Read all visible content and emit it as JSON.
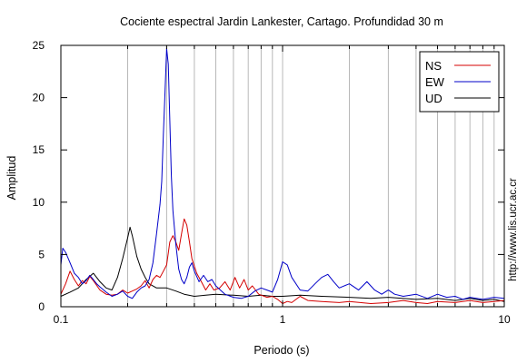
{
  "chart_data": {
    "type": "line",
    "title": "Cociente espectral Jardin Lankester, Cartago. Profundidad 30 m",
    "xlabel": "Periodo (s)",
    "ylabel": "Amplitud",
    "x_scale": "log",
    "xlim": [
      0.1,
      10
    ],
    "ylim": [
      0,
      25
    ],
    "x_ticks": [
      {
        "value": 0.1,
        "label": "0.1"
      },
      {
        "value": 1,
        "label": "1"
      },
      {
        "value": 10,
        "label": "10"
      }
    ],
    "y_ticks": [
      {
        "value": 0,
        "label": "0"
      },
      {
        "value": 5,
        "label": "5"
      },
      {
        "value": 10,
        "label": "10"
      },
      {
        "value": 15,
        "label": "15"
      },
      {
        "value": 20,
        "label": "20"
      },
      {
        "value": 25,
        "label": "25"
      }
    ],
    "grid": "vertical",
    "legend_position": "top-right",
    "side_text": "http://www.lis.ucr.ac.cr",
    "series": [
      {
        "name": "NS",
        "color": "#d40000",
        "points": [
          [
            0.1,
            1.2
          ],
          [
            0.105,
            2.2
          ],
          [
            0.11,
            3.4
          ],
          [
            0.115,
            2.6
          ],
          [
            0.12,
            2.0
          ],
          [
            0.125,
            2.5
          ],
          [
            0.13,
            2.2
          ],
          [
            0.135,
            2.9
          ],
          [
            0.14,
            2.5
          ],
          [
            0.15,
            1.6
          ],
          [
            0.16,
            1.2
          ],
          [
            0.17,
            1.1
          ],
          [
            0.18,
            1.2
          ],
          [
            0.19,
            1.6
          ],
          [
            0.2,
            1.3
          ],
          [
            0.21,
            1.5
          ],
          [
            0.22,
            1.7
          ],
          [
            0.23,
            2.0
          ],
          [
            0.24,
            2.5
          ],
          [
            0.25,
            1.8
          ],
          [
            0.26,
            2.6
          ],
          [
            0.27,
            3.0
          ],
          [
            0.28,
            2.8
          ],
          [
            0.29,
            3.4
          ],
          [
            0.3,
            4.0
          ],
          [
            0.31,
            6.2
          ],
          [
            0.32,
            6.8
          ],
          [
            0.33,
            6.2
          ],
          [
            0.34,
            5.4
          ],
          [
            0.35,
            7.0
          ],
          [
            0.36,
            8.4
          ],
          [
            0.37,
            7.8
          ],
          [
            0.38,
            6.2
          ],
          [
            0.39,
            4.6
          ],
          [
            0.41,
            3.2
          ],
          [
            0.43,
            2.4
          ],
          [
            0.45,
            1.6
          ],
          [
            0.47,
            2.2
          ],
          [
            0.49,
            1.6
          ],
          [
            0.52,
            1.8
          ],
          [
            0.55,
            2.4
          ],
          [
            0.58,
            1.6
          ],
          [
            0.61,
            2.8
          ],
          [
            0.64,
            1.8
          ],
          [
            0.67,
            2.6
          ],
          [
            0.7,
            1.6
          ],
          [
            0.73,
            2.0
          ],
          [
            0.78,
            1.2
          ],
          [
            0.85,
            0.9
          ],
          [
            0.9,
            1.0
          ],
          [
            0.95,
            0.7
          ],
          [
            1.0,
            0.3
          ],
          [
            1.05,
            0.5
          ],
          [
            1.1,
            0.4
          ],
          [
            1.2,
            1.0
          ],
          [
            1.3,
            0.6
          ],
          [
            1.5,
            0.5
          ],
          [
            1.8,
            0.4
          ],
          [
            2.0,
            0.5
          ],
          [
            2.5,
            0.3
          ],
          [
            3.0,
            0.4
          ],
          [
            3.5,
            0.6
          ],
          [
            4.0,
            0.4
          ],
          [
            4.5,
            0.3
          ],
          [
            5.0,
            0.5
          ],
          [
            6.0,
            0.4
          ],
          [
            7.0,
            0.6
          ],
          [
            8.0,
            0.4
          ],
          [
            9.0,
            0.5
          ],
          [
            10.0,
            0.6
          ]
        ]
      },
      {
        "name": "EW",
        "color": "#0000c8",
        "points": [
          [
            0.1,
            4.0
          ],
          [
            0.102,
            5.6
          ],
          [
            0.105,
            5.2
          ],
          [
            0.11,
            4.2
          ],
          [
            0.115,
            3.2
          ],
          [
            0.12,
            2.8
          ],
          [
            0.125,
            2.2
          ],
          [
            0.13,
            2.5
          ],
          [
            0.135,
            3.0
          ],
          [
            0.14,
            2.6
          ],
          [
            0.145,
            2.2
          ],
          [
            0.15,
            1.9
          ],
          [
            0.16,
            1.4
          ],
          [
            0.17,
            1.0
          ],
          [
            0.18,
            1.2
          ],
          [
            0.19,
            1.5
          ],
          [
            0.2,
            1.0
          ],
          [
            0.21,
            0.8
          ],
          [
            0.22,
            1.4
          ],
          [
            0.23,
            1.8
          ],
          [
            0.24,
            2.0
          ],
          [
            0.25,
            2.6
          ],
          [
            0.26,
            4.2
          ],
          [
            0.27,
            7.0
          ],
          [
            0.28,
            9.8
          ],
          [
            0.285,
            12.0
          ],
          [
            0.29,
            16.5
          ],
          [
            0.295,
            20.5
          ],
          [
            0.3,
            24.7
          ],
          [
            0.305,
            23.2
          ],
          [
            0.31,
            17.8
          ],
          [
            0.315,
            12.5
          ],
          [
            0.32,
            9.2
          ],
          [
            0.33,
            6.0
          ],
          [
            0.34,
            3.6
          ],
          [
            0.35,
            2.6
          ],
          [
            0.36,
            2.2
          ],
          [
            0.37,
            2.8
          ],
          [
            0.38,
            3.8
          ],
          [
            0.39,
            4.2
          ],
          [
            0.4,
            3.4
          ],
          [
            0.42,
            2.4
          ],
          [
            0.44,
            3.0
          ],
          [
            0.46,
            2.4
          ],
          [
            0.48,
            2.6
          ],
          [
            0.5,
            2.0
          ],
          [
            0.55,
            1.2
          ],
          [
            0.6,
            0.9
          ],
          [
            0.65,
            0.8
          ],
          [
            0.7,
            1.0
          ],
          [
            0.75,
            1.5
          ],
          [
            0.8,
            1.8
          ],
          [
            0.85,
            1.6
          ],
          [
            0.9,
            1.4
          ],
          [
            0.95,
            2.6
          ],
          [
            1.0,
            4.3
          ],
          [
            1.05,
            4.0
          ],
          [
            1.1,
            2.8
          ],
          [
            1.2,
            1.6
          ],
          [
            1.3,
            1.5
          ],
          [
            1.4,
            2.2
          ],
          [
            1.5,
            2.8
          ],
          [
            1.6,
            3.1
          ],
          [
            1.7,
            2.4
          ],
          [
            1.8,
            1.8
          ],
          [
            2.0,
            2.2
          ],
          [
            2.2,
            1.6
          ],
          [
            2.4,
            2.4
          ],
          [
            2.6,
            1.6
          ],
          [
            2.8,
            1.2
          ],
          [
            3.0,
            1.6
          ],
          [
            3.2,
            1.2
          ],
          [
            3.5,
            1.0
          ],
          [
            4.0,
            1.2
          ],
          [
            4.5,
            0.8
          ],
          [
            5.0,
            1.2
          ],
          [
            5.5,
            0.9
          ],
          [
            6.0,
            1.0
          ],
          [
            6.5,
            0.7
          ],
          [
            7.0,
            0.9
          ],
          [
            8.0,
            0.7
          ],
          [
            9.0,
            0.9
          ],
          [
            10.0,
            0.8
          ]
        ]
      },
      {
        "name": "UD",
        "color": "#000000",
        "points": [
          [
            0.1,
            1.0
          ],
          [
            0.11,
            1.4
          ],
          [
            0.12,
            1.8
          ],
          [
            0.13,
            2.6
          ],
          [
            0.14,
            3.2
          ],
          [
            0.15,
            2.4
          ],
          [
            0.16,
            1.8
          ],
          [
            0.17,
            1.6
          ],
          [
            0.18,
            2.8
          ],
          [
            0.19,
            4.6
          ],
          [
            0.2,
            6.6
          ],
          [
            0.205,
            7.6
          ],
          [
            0.21,
            6.8
          ],
          [
            0.22,
            4.8
          ],
          [
            0.23,
            3.6
          ],
          [
            0.24,
            2.8
          ],
          [
            0.25,
            2.2
          ],
          [
            0.27,
            1.8
          ],
          [
            0.3,
            1.8
          ],
          [
            0.33,
            1.5
          ],
          [
            0.36,
            1.2
          ],
          [
            0.4,
            1.0
          ],
          [
            0.45,
            1.1
          ],
          [
            0.5,
            1.2
          ],
          [
            0.6,
            1.1
          ],
          [
            0.7,
            1.0
          ],
          [
            0.8,
            1.1
          ],
          [
            0.9,
            1.0
          ],
          [
            1.0,
            1.0
          ],
          [
            1.2,
            1.1
          ],
          [
            1.5,
            1.0
          ],
          [
            2.0,
            0.9
          ],
          [
            2.5,
            0.8
          ],
          [
            3.0,
            0.9
          ],
          [
            4.0,
            0.7
          ],
          [
            5.0,
            0.8
          ],
          [
            6.0,
            0.6
          ],
          [
            7.0,
            0.8
          ],
          [
            8.0,
            0.6
          ],
          [
            9.0,
            0.7
          ],
          [
            10.0,
            0.5
          ]
        ]
      }
    ]
  }
}
